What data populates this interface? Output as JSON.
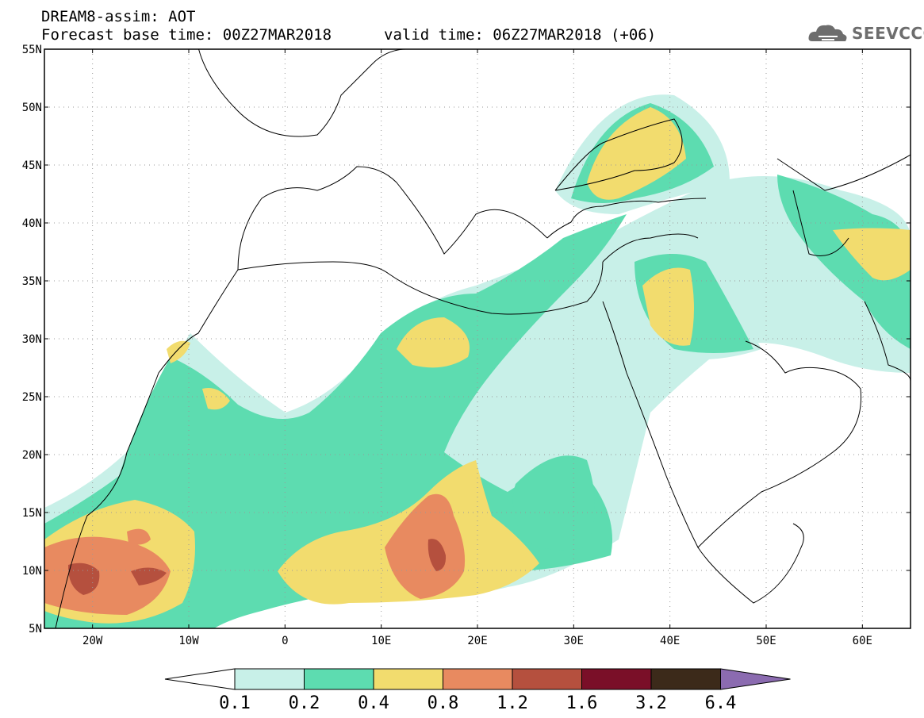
{
  "header": {
    "line1": "DREAM8-assim: AOT",
    "line2": "Forecast base time: 00Z27MAR2018",
    "line3": "valid time: 06Z27MAR2018 (+06)"
  },
  "logo": {
    "text": "SEEVCCC",
    "icon": "cloud-icon"
  },
  "map": {
    "lat_labels": [
      "55N",
      "50N",
      "45N",
      "40N",
      "35N",
      "30N",
      "25N",
      "20N",
      "15N",
      "10N",
      "5N"
    ],
    "lon_labels": [
      "20W",
      "10W",
      "0",
      "10E",
      "20E",
      "30E",
      "40E",
      "50E",
      "60E"
    ],
    "lat_range": [
      5,
      55
    ],
    "lon_range": [
      -25,
      65
    ],
    "grid": true
  },
  "colorbar": {
    "labels": [
      "0.1",
      "0.2",
      "0.4",
      "0.8",
      "1.2",
      "1.6",
      "3.2",
      "6.4"
    ],
    "colors": [
      "#c8f0e8",
      "#5ddcb0",
      "#f2dc6e",
      "#e88a60",
      "#b5503e",
      "#7a0f28",
      "#3c2a1a",
      "#8b6bb0"
    ]
  }
}
